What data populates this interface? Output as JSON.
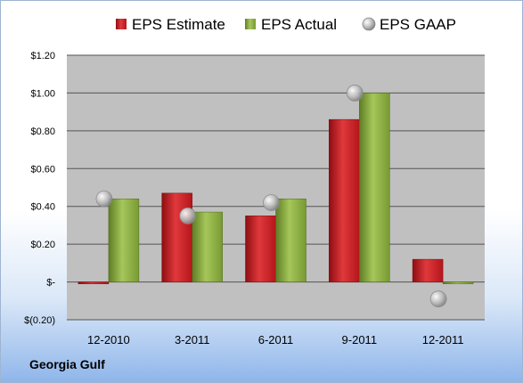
{
  "chart_data": {
    "type": "bar",
    "title": "",
    "xlabel": "",
    "ylabel": "",
    "categories": [
      "12-2010",
      "3-2011",
      "6-2011",
      "9-2011",
      "12-2011"
    ],
    "series": [
      {
        "name": "EPS Estimate",
        "kind": "bar",
        "color": "#cc1f24",
        "values": [
          -0.01,
          0.47,
          0.35,
          0.86,
          0.12
        ]
      },
      {
        "name": "EPS Actual",
        "kind": "bar",
        "color": "#8db043",
        "values": [
          0.44,
          0.37,
          0.44,
          1.0,
          -0.01
        ]
      },
      {
        "name": "EPS GAAP",
        "kind": "marker",
        "color": "#b8b8b8",
        "values": [
          0.44,
          0.35,
          0.42,
          1.0,
          -0.09
        ]
      }
    ],
    "ylim": [
      -0.2,
      1.2
    ],
    "yticks": [
      {
        "value": 1.2,
        "label": "$1.20"
      },
      {
        "value": 1.0,
        "label": "$1.00"
      },
      {
        "value": 0.8,
        "label": "$0.80"
      },
      {
        "value": 0.6,
        "label": "$0.60"
      },
      {
        "value": 0.4,
        "label": "$0.40"
      },
      {
        "value": 0.2,
        "label": "$0.20"
      },
      {
        "value": 0.0,
        "label": "$-"
      },
      {
        "value": -0.2,
        "label": "$(0.20)"
      }
    ],
    "grid": true,
    "legend_position": "top",
    "plot_background": "#c0c0c0"
  },
  "footer": {
    "company": "Georgia Gulf"
  }
}
